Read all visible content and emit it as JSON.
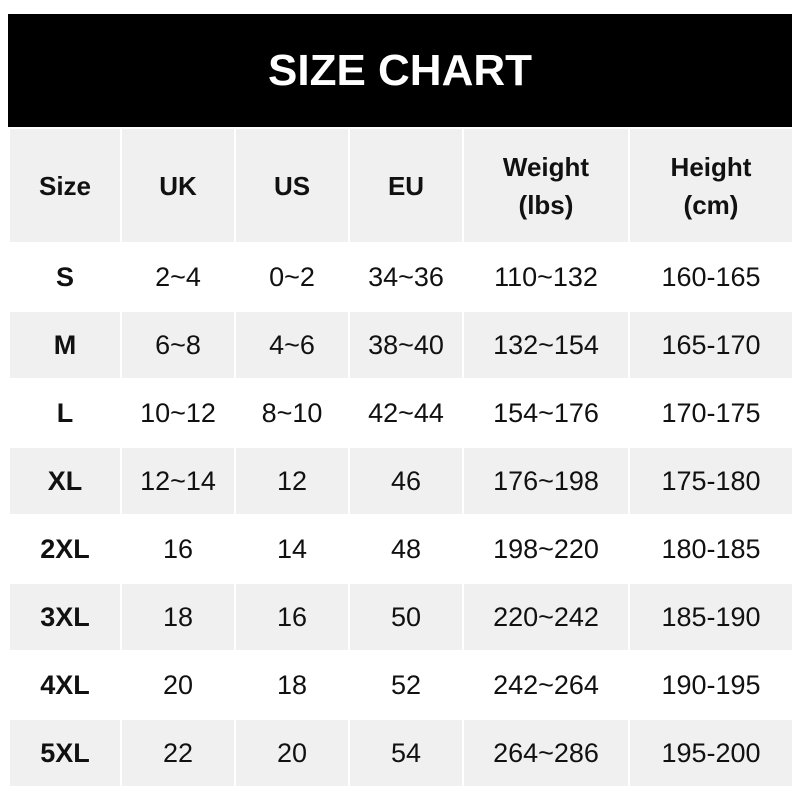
{
  "title": "SIZE CHART",
  "columns": [
    "Size",
    "UK",
    "US",
    "EU",
    "Weight (lbs)",
    "Height (cm)"
  ],
  "rows": [
    [
      "S",
      "2~4",
      "0~2",
      "34~36",
      "110~132",
      "160-165"
    ],
    [
      "M",
      "6~8",
      "4~6",
      "38~40",
      "132~154",
      "165-170"
    ],
    [
      "L",
      "10~12",
      "8~10",
      "42~44",
      "154~176",
      "170-175"
    ],
    [
      "XL",
      "12~14",
      "12",
      "46",
      "176~198",
      "175-180"
    ],
    [
      "2XL",
      "16",
      "14",
      "48",
      "198~220",
      "180-185"
    ],
    [
      "3XL",
      "18",
      "16",
      "50",
      "220~242",
      "185-190"
    ],
    [
      "4XL",
      "20",
      "18",
      "52",
      "242~264",
      "190-195"
    ],
    [
      "5XL",
      "22",
      "20",
      "54",
      "264~286",
      "195-200"
    ]
  ],
  "colors": {
    "header_bg": "#000000",
    "header_row_bg": "#f0f0f0",
    "alt_row_bg": "#f0f0f0",
    "row_bg": "#ffffff"
  }
}
